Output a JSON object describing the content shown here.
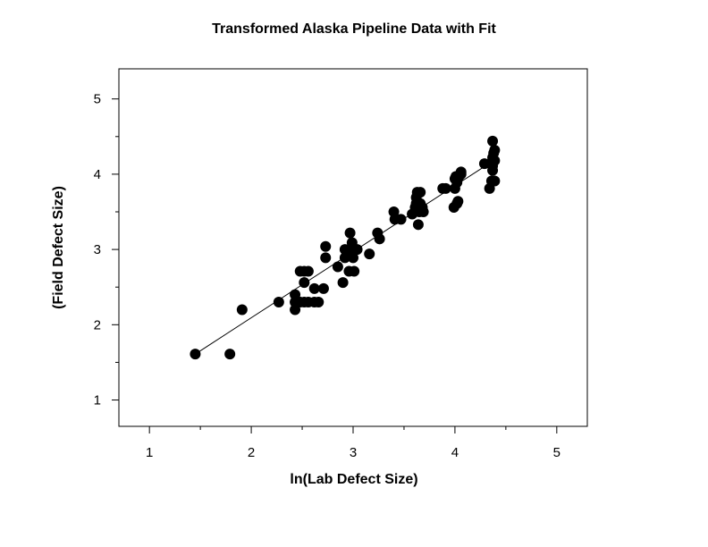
{
  "chart_data": {
    "type": "scatter",
    "title": "Transformed Alaska Pipeline Data with Fit",
    "xlabel": "ln(Lab Defect Size)",
    "ylabel": "(Field Defect Size)",
    "xlim": [
      0.7,
      5.3
    ],
    "ylim": [
      0.65,
      5.4
    ],
    "x_ticks": [
      1,
      2,
      3,
      4,
      5
    ],
    "y_ticks": [
      1,
      2,
      3,
      4,
      5
    ],
    "grid": false,
    "marker_color": "#000000",
    "points": [
      [
        1.45,
        1.61
      ],
      [
        1.79,
        1.61
      ],
      [
        1.91,
        2.2
      ],
      [
        2.27,
        2.3
      ],
      [
        2.43,
        2.2
      ],
      [
        2.43,
        2.3
      ],
      [
        2.43,
        2.4
      ],
      [
        2.48,
        2.3
      ],
      [
        2.48,
        2.71
      ],
      [
        2.52,
        2.3
      ],
      [
        2.52,
        2.56
      ],
      [
        2.52,
        2.71
      ],
      [
        2.56,
        2.3
      ],
      [
        2.56,
        2.71
      ],
      [
        2.62,
        2.3
      ],
      [
        2.62,
        2.48
      ],
      [
        2.66,
        2.3
      ],
      [
        2.71,
        2.48
      ],
      [
        2.73,
        2.89
      ],
      [
        2.73,
        3.04
      ],
      [
        2.85,
        2.77
      ],
      [
        2.9,
        2.56
      ],
      [
        2.92,
        2.89
      ],
      [
        2.92,
        3.0
      ],
      [
        2.96,
        2.71
      ],
      [
        2.96,
        2.94
      ],
      [
        2.96,
        3.0
      ],
      [
        2.97,
        3.22
      ],
      [
        2.99,
        3.09
      ],
      [
        3.0,
        3.0
      ],
      [
        3.0,
        2.89
      ],
      [
        3.01,
        2.71
      ],
      [
        3.04,
        3.0
      ],
      [
        3.16,
        2.94
      ],
      [
        3.24,
        3.22
      ],
      [
        3.26,
        3.14
      ],
      [
        3.4,
        3.5
      ],
      [
        3.41,
        3.4
      ],
      [
        3.47,
        3.4
      ],
      [
        3.58,
        3.47
      ],
      [
        3.61,
        3.56
      ],
      [
        3.62,
        3.61
      ],
      [
        3.62,
        3.69
      ],
      [
        3.63,
        3.76
      ],
      [
        3.64,
        3.33
      ],
      [
        3.65,
        3.5
      ],
      [
        3.66,
        3.61
      ],
      [
        3.66,
        3.76
      ],
      [
        3.68,
        3.56
      ],
      [
        3.69,
        3.5
      ],
      [
        3.88,
        3.81
      ],
      [
        3.91,
        3.81
      ],
      [
        3.99,
        3.56
      ],
      [
        4.0,
        3.81
      ],
      [
        4.0,
        3.94
      ],
      [
        4.01,
        3.97
      ],
      [
        4.02,
        3.89
      ],
      [
        4.02,
        3.61
      ],
      [
        4.03,
        3.64
      ],
      [
        4.04,
        3.97
      ],
      [
        4.06,
        4.03
      ],
      [
        4.06,
        4.0
      ],
      [
        4.29,
        4.14
      ],
      [
        4.34,
        3.81
      ],
      [
        4.36,
        3.91
      ],
      [
        4.37,
        4.05
      ],
      [
        4.37,
        4.11
      ],
      [
        4.37,
        4.17
      ],
      [
        4.37,
        4.22
      ],
      [
        4.37,
        4.44
      ],
      [
        4.38,
        4.28
      ],
      [
        4.39,
        4.32
      ],
      [
        4.39,
        4.18
      ],
      [
        4.39,
        3.91
      ]
    ],
    "fit_line": {
      "x": [
        1.45,
        4.39
      ],
      "y": [
        1.61,
        4.19
      ]
    }
  }
}
